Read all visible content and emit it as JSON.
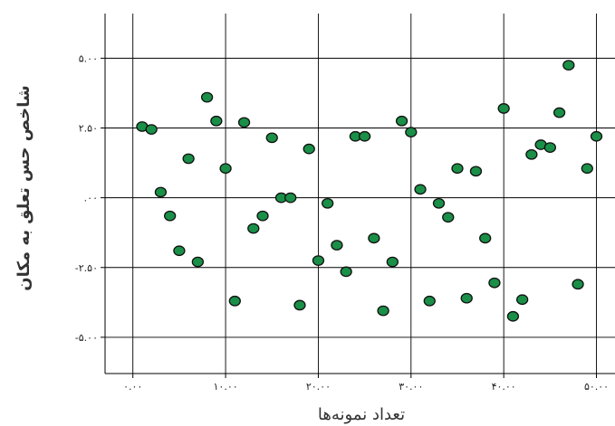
{
  "chart_data": {
    "type": "scatter",
    "title": "",
    "xlabel": "تعداد نمونه‌ها",
    "ylabel": "شاخص حس تعلق به مکان",
    "xlim": [
      -3,
      52
    ],
    "ylim": [
      -6.3,
      6.6
    ],
    "x_ticks": [
      0,
      10,
      20,
      30,
      40,
      50
    ],
    "y_ticks": [
      5,
      2.5,
      0,
      -2.5,
      -5
    ],
    "x_tick_labels": [
      "۰.۰۰",
      "۱۰.۰۰",
      "۲۰.۰۰",
      "۳۰.۰۰",
      "۴۰.۰۰",
      "۵۰.۰۰"
    ],
    "y_tick_labels": [
      "۵.۰۰",
      "۲.۵۰",
      ".۰۰",
      "-۲.۵۰",
      "-۵.۰۰"
    ],
    "grid": true,
    "marker_color": "#1a8f47",
    "marker_edge": "#111111",
    "series": [
      {
        "name": "",
        "x": [
          1,
          2,
          3,
          4,
          5,
          6,
          7,
          8,
          9,
          10,
          11,
          12,
          13,
          14,
          15,
          16,
          17,
          18,
          19,
          20,
          21,
          22,
          23,
          24,
          25,
          26,
          27,
          28,
          29,
          30,
          31,
          32,
          33,
          34,
          35,
          36,
          37,
          38,
          39,
          40,
          41,
          42,
          43,
          44,
          45,
          46,
          47,
          48,
          49,
          50
        ],
        "y": [
          2.55,
          2.45,
          0.2,
          -0.65,
          -1.9,
          1.4,
          -2.3,
          3.6,
          2.75,
          1.05,
          -3.7,
          2.7,
          -1.1,
          -0.65,
          2.15,
          0,
          0,
          -3.85,
          1.75,
          -2.25,
          -0.2,
          -1.7,
          -2.65,
          2.2,
          2.2,
          -1.45,
          -4.05,
          -2.3,
          2.75,
          2.35,
          0.3,
          -3.7,
          -0.2,
          -0.7,
          1.05,
          -3.6,
          0.95,
          -1.45,
          -3.05,
          3.2,
          -4.25,
          -3.65,
          1.55,
          1.9,
          1.8,
          3.05,
          4.75,
          -3.1,
          1.05,
          2.2
        ]
      }
    ]
  }
}
